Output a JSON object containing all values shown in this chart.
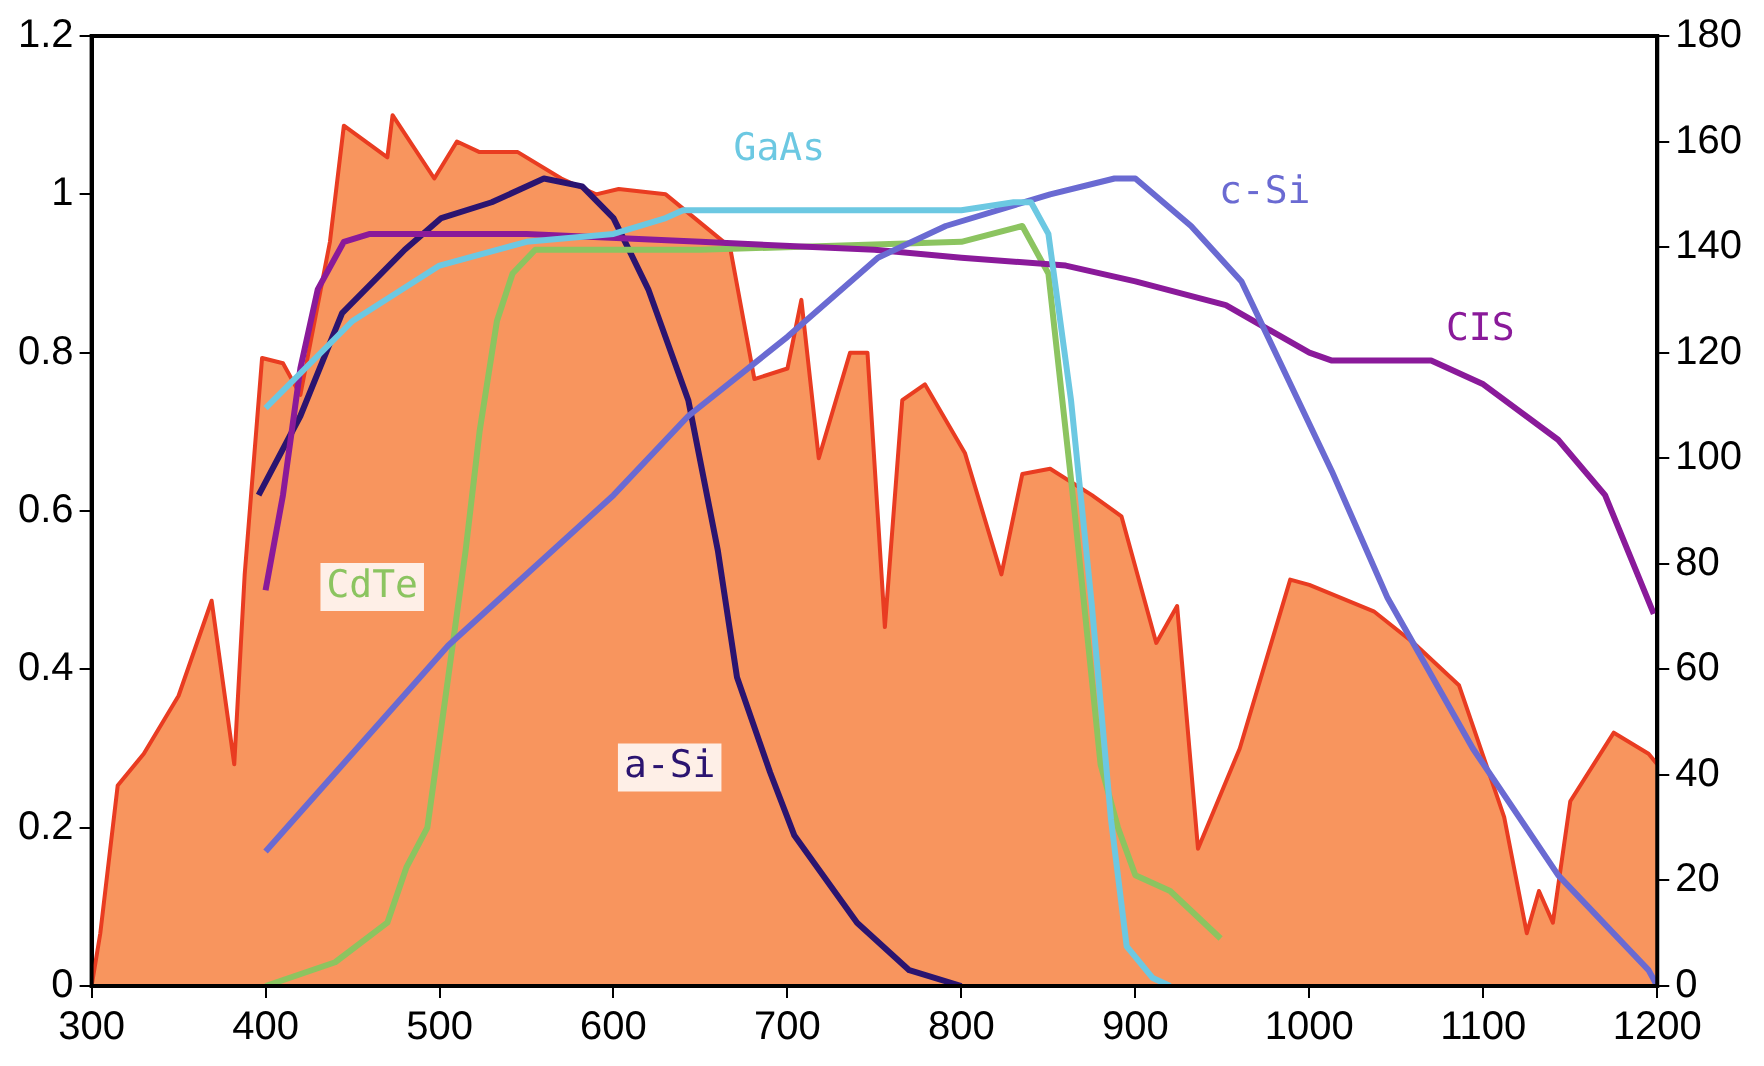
{
  "chart_data": {
    "type": "line",
    "xlim": [
      300,
      1200
    ],
    "xticks": [
      300,
      400,
      500,
      600,
      700,
      800,
      900,
      1000,
      1100,
      1200
    ],
    "ylim": [
      0,
      1.2
    ],
    "yticks": [
      0,
      0.2,
      0.4,
      0.6,
      0.8,
      1,
      1.2
    ],
    "y2lim": [
      0,
      180
    ],
    "y2ticks": [
      0,
      20,
      40,
      60,
      80,
      100,
      120,
      140,
      160,
      180
    ],
    "grid": false,
    "legend": false,
    "marker": "none",
    "line_style": "solid",
    "series": [
      {
        "type": "area",
        "axis": "y2",
        "color": "#f8955e",
        "x": [
          300,
          305,
          315,
          330,
          350,
          369,
          382,
          388,
          398,
          410,
          420,
          437,
          445,
          470,
          473,
          497,
          510,
          523,
          545,
          570,
          590,
          603,
          630,
          667,
          681,
          700,
          708,
          718,
          736,
          746,
          756,
          766,
          779,
          802,
          823,
          835,
          851,
          875,
          892,
          912,
          924,
          936,
          960,
          989,
          1000,
          1037,
          1060,
          1086,
          1112,
          1125,
          1132,
          1140,
          1150,
          1175,
          1195,
          1200
        ],
        "values": [
          0,
          10,
          38,
          44,
          55,
          73,
          42,
          78,
          119,
          118,
          112,
          141,
          163,
          157,
          165,
          153,
          160,
          158,
          158,
          153,
          150,
          151,
          150,
          140,
          115,
          117,
          130,
          100,
          120,
          120,
          68,
          111,
          114,
          101,
          78,
          97,
          98,
          93,
          89,
          65,
          72,
          26,
          45,
          77,
          76,
          71,
          65,
          57,
          32,
          10,
          18,
          12,
          35,
          48,
          44,
          42
        ]
      },
      {
        "name": "GaAs",
        "color": "#6cc8e2",
        "x": [
          400,
          450,
          500,
          550,
          600,
          630,
          640,
          800,
          830,
          840,
          850,
          863,
          875,
          886,
          895,
          910,
          920
        ],
        "values": [
          0.73,
          0.84,
          0.91,
          0.94,
          0.95,
          0.97,
          0.98,
          0.98,
          0.99,
          0.99,
          0.95,
          0.74,
          0.48,
          0.21,
          0.05,
          0.01,
          0
        ]
      },
      {
        "name": "c-Si",
        "color": "#6a6ad2",
        "x": [
          400,
          505,
          600,
          643,
          700,
          752,
          791,
          851,
          888,
          900,
          932,
          961,
          1013,
          1045,
          1094,
          1143,
          1195,
          1200
        ],
        "values": [
          0.17,
          0.43,
          0.62,
          0.72,
          0.82,
          0.92,
          0.96,
          1,
          1.02,
          1.02,
          0.96,
          0.89,
          0.65,
          0.49,
          0.3,
          0.14,
          0.02,
          0
        ]
      },
      {
        "name": "CIS",
        "color": "#8a1a9a",
        "x": [
          400,
          410,
          420,
          430,
          445,
          460,
          550,
          650,
          750,
          800,
          860,
          900,
          952,
          1000,
          1013,
          1070,
          1100,
          1143,
          1170,
          1198
        ],
        "values": [
          0.5,
          0.62,
          0.78,
          0.88,
          0.94,
          0.95,
          0.95,
          0.94,
          0.93,
          0.92,
          0.91,
          0.89,
          0.86,
          0.8,
          0.79,
          0.79,
          0.76,
          0.69,
          0.62,
          0.47
        ]
      },
      {
        "name": "CdTe",
        "color": "#8cc460",
        "x": [
          400,
          440,
          470,
          481,
          493,
          505,
          515,
          523,
          533,
          542,
          555,
          650,
          800,
          835,
          850,
          865,
          880,
          890,
          900,
          920,
          949
        ],
        "values": [
          0,
          0.03,
          0.08,
          0.15,
          0.2,
          0.39,
          0.55,
          0.7,
          0.84,
          0.9,
          0.93,
          0.93,
          0.94,
          0.96,
          0.9,
          0.6,
          0.28,
          0.2,
          0.14,
          0.12,
          0.06
        ]
      },
      {
        "name": "a-Si",
        "color": "#2b1470",
        "x": [
          396,
          420,
          444,
          480,
          501,
          530,
          560,
          582,
          600,
          620,
          643,
          660,
          671,
          690,
          704,
          740,
          770,
          800
        ],
        "values": [
          0.62,
          0.72,
          0.85,
          0.93,
          0.97,
          0.99,
          1.02,
          1.01,
          0.97,
          0.88,
          0.74,
          0.55,
          0.39,
          0.27,
          0.19,
          0.08,
          0.02,
          0
        ]
      }
    ]
  }
}
